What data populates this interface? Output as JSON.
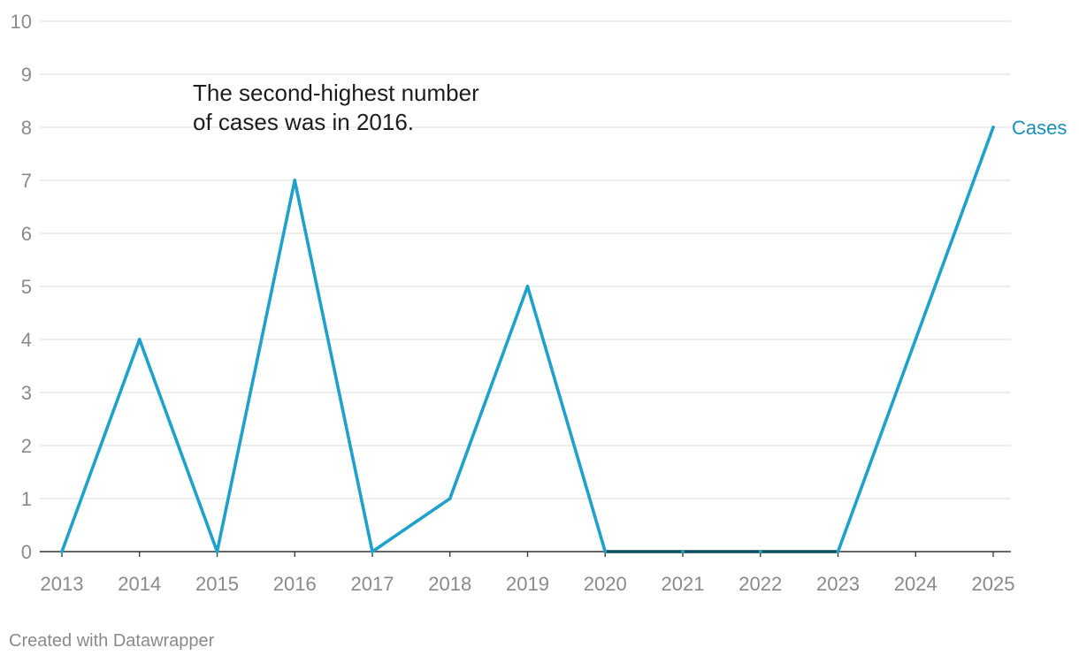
{
  "chart_data": {
    "type": "line",
    "title": "",
    "xlabel": "",
    "ylabel": "",
    "x": [
      "2013",
      "2014",
      "2015",
      "2016",
      "2017",
      "2018",
      "2019",
      "2020",
      "2021",
      "2022",
      "2023",
      "2024",
      "2025"
    ],
    "series": [
      {
        "name": "Cases",
        "values": [
          0,
          4,
          0,
          7,
          0,
          1,
          5,
          0,
          0,
          0,
          0,
          4,
          8
        ]
      }
    ],
    "ylim": [
      0,
      10
    ],
    "yticks": [
      0,
      1,
      2,
      3,
      4,
      5,
      6,
      7,
      8,
      9,
      10
    ],
    "grid": true,
    "annotation": {
      "line1": "The second-highest number",
      "line2": "of cases was in 2016."
    },
    "colors": {
      "line": "#1fa1cc",
      "zero_line": "#0b4f5f",
      "label": "#1a8fb5",
      "grid": "#e2e2e2",
      "axis": "#333333",
      "tick_text": "#8a8a8a"
    }
  },
  "footer": {
    "credit": "Created with Datawrapper"
  }
}
